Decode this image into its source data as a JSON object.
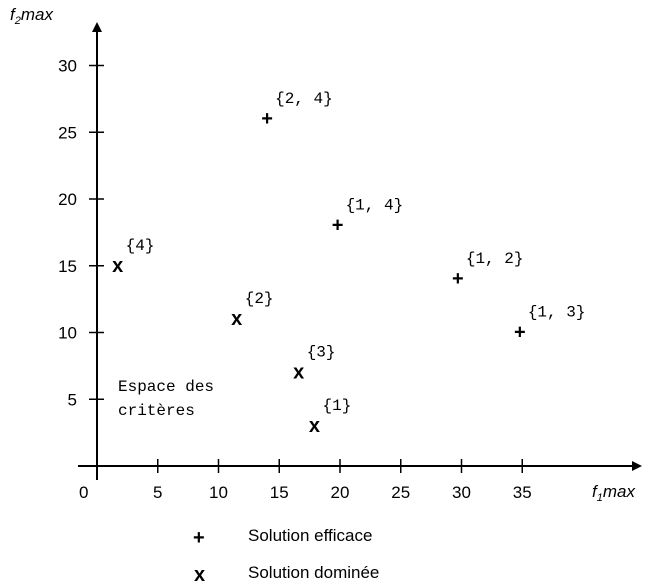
{
  "chart_data": {
    "type": "scatter",
    "xlabel": {
      "main": "f",
      "sub": "1",
      "rest": "max"
    },
    "ylabel": {
      "main": "f",
      "sub": "2",
      "rest": "max"
    },
    "xlim": [
      0,
      40
    ],
    "ylim": [
      0,
      34
    ],
    "x_ticks": [
      5,
      10,
      15,
      20,
      25,
      30,
      35
    ],
    "y_ticks": [
      5,
      10,
      15,
      20,
      25,
      30
    ],
    "origin_label": "0",
    "grid": false,
    "annotation": [
      "Espace des",
      "critères"
    ],
    "series": [
      {
        "name": "Solution efficace",
        "marker": "+",
        "points": [
          {
            "x": 14,
            "y": 26,
            "label": "{2, 4}"
          },
          {
            "x": 19.8,
            "y": 18,
            "label": "{1, 4}"
          },
          {
            "x": 29.7,
            "y": 14,
            "label": "{1, 2}"
          },
          {
            "x": 34.8,
            "y": 10,
            "label": "{1, 3}"
          }
        ]
      },
      {
        "name": "Solution dominée",
        "marker": "x",
        "points": [
          {
            "x": 1.7,
            "y": 15,
            "label": "{4}"
          },
          {
            "x": 11.5,
            "y": 11,
            "label": "{2}"
          },
          {
            "x": 16.6,
            "y": 7,
            "label": "{3}"
          },
          {
            "x": 17.9,
            "y": 3,
            "label": "{1}"
          }
        ]
      }
    ],
    "legend": {
      "position": "bottom",
      "entries": [
        {
          "symbol": "+",
          "text": "Solution efficace"
        },
        {
          "symbol": "x",
          "text": "Solution dominée"
        }
      ]
    }
  }
}
